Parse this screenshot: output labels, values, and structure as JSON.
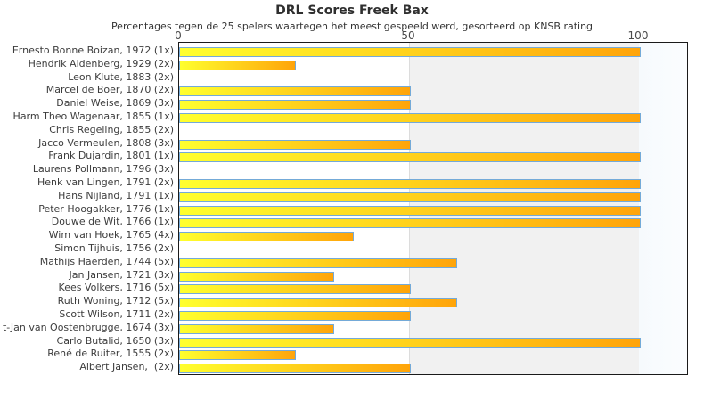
{
  "chart_data": {
    "type": "bar",
    "orientation": "horizontal",
    "title": "DRL Scores Freek Bax",
    "subtitle": "Percentages tegen de 25 spelers waartegen het meest gespeeld werd, gesorteerd op KNSB rating",
    "xlabel": "",
    "ylabel": "",
    "xlim": [
      0,
      110.8
    ],
    "xticks": [
      0,
      50,
      100
    ],
    "xtick_labels": [
      "0",
      "50",
      "100"
    ],
    "grid": "vertical-line-at-50",
    "legend": "none",
    "categories": [
      "Ernesto Bonne Boizan, 1972 (1x)",
      "Hendrik Aldenberg, 1929 (2x)",
      "Leon Klute, 1883 (2x)",
      "Marcel de Boer, 1870 (2x)",
      "Daniel Weise, 1869 (3x)",
      "Harm Theo Wagenaar, 1855 (1x)",
      "Chris Regeling, 1855 (2x)",
      "Jacco Vermeulen, 1808 (3x)",
      "Frank Dujardin, 1801 (1x)",
      "Laurens Pollmann, 1796 (3x)",
      "Henk van Lingen, 1791 (2x)",
      "Hans Nijland, 1791 (1x)",
      "Peter Hoogakker, 1776 (1x)",
      "Douwe de Wit, 1766 (1x)",
      "Wim van Hoek, 1765 (4x)",
      "Simon Tijhuis, 1756 (2x)",
      "Mathijs Haerden, 1744 (5x)",
      "Jan Jansen, 1721 (3x)",
      "Kees Volkers, 1716 (5x)",
      "Ruth Woning, 1712 (5x)",
      "Scott Wilson, 1711 (2x)",
      "t-Jan van Oostenbrugge, 1674 (3x)",
      "Carlo Butalid, 1650 (3x)",
      "René de Ruiter, 1555 (2x)",
      "Albert Jansen,  (2x)"
    ],
    "values": [
      100,
      25,
      0,
      50,
      50,
      100,
      0,
      50,
      100,
      0,
      100,
      100,
      100,
      100,
      37.5,
      0,
      60,
      33.3,
      50,
      60,
      50,
      33.3,
      100,
      25,
      50
    ],
    "colors": {
      "bar_gradient_start": "#ffff2e",
      "bar_gradient_end": "#ffa40a",
      "bar_border": "#74aad8",
      "zone_0_50": "#ffffff",
      "zone_50_100": "#f1f1f1",
      "zone_over_100": "#fbfdff",
      "plot_border": "#1a1a1a",
      "text": "#303030"
    }
  }
}
